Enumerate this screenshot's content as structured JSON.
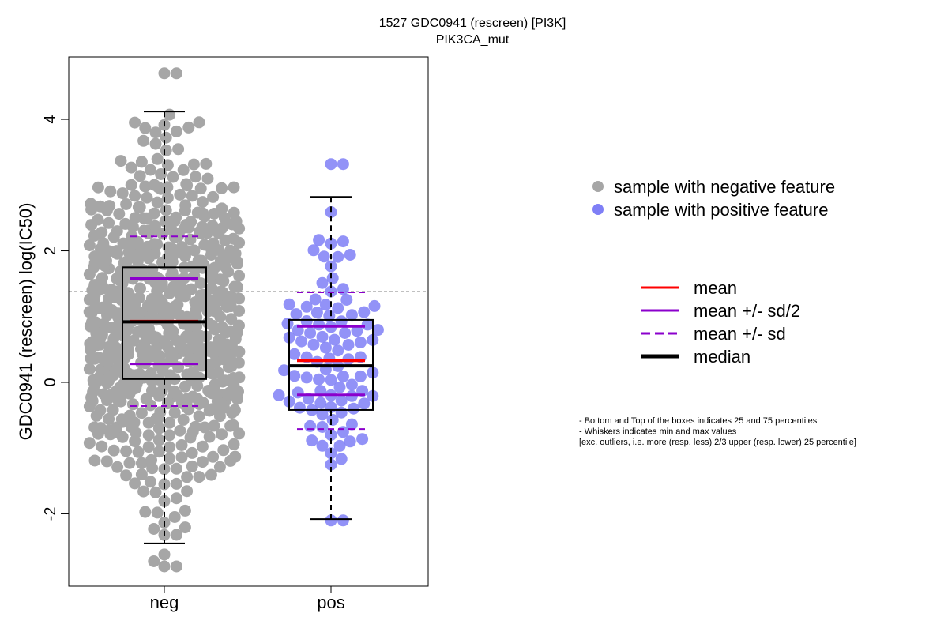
{
  "chart_data": {
    "type": "scatter",
    "title": "1527 GDC0941 (rescreen) [PI3K]",
    "subtitle": "PIK3CA_mut",
    "xlabel": "",
    "ylabel": "GDC0941 (rescreen) log(IC50)",
    "categories": [
      "neg",
      "pos"
    ],
    "ylim": [
      -3.1,
      4.95
    ],
    "yticks": [
      -2,
      0,
      2,
      4
    ],
    "reference_line": 1.38,
    "colors": {
      "neg_points": "#a6a6a6",
      "pos_points": "#7f7ff6",
      "pos_outline": "#3a3ae8",
      "mean": "#ff0000",
      "sd": "#8b00cc",
      "median": "#000000"
    },
    "groups": [
      {
        "name": "neg",
        "n": 700,
        "min": -2.45,
        "q1": 0.05,
        "median": 0.92,
        "q3": 1.75,
        "max": 4.12,
        "mean": 0.93,
        "sd_half_lo": 0.28,
        "sd_half_hi": 1.58,
        "sd_lo": -0.36,
        "sd_hi": 2.22,
        "cluster_mean": 0.9,
        "cluster_sd": 1.28,
        "y_lo": -2.8,
        "y_hi": 4.7
      },
      {
        "name": "pos",
        "n": 100,
        "min": -2.08,
        "q1": -0.42,
        "median": 0.25,
        "q3": 0.95,
        "max": 2.82,
        "mean": 0.33,
        "sd_half_lo": -0.19,
        "sd_half_hi": 0.85,
        "sd_lo": -0.71,
        "sd_hi": 1.37,
        "cluster_mean": 0.32,
        "cluster_sd": 0.98,
        "y_lo": -2.1,
        "y_hi": 3.32
      }
    ],
    "legend_points": [
      {
        "label": "sample with negative feature",
        "color": "#a6a6a6"
      },
      {
        "label": "sample with positive feature",
        "color": "#7f7ff6"
      }
    ],
    "legend_lines": [
      {
        "label": "mean",
        "color": "#ff0000",
        "style": "solid"
      },
      {
        "label": "mean +/- sd/2",
        "color": "#8b00cc",
        "style": "solid"
      },
      {
        "label": "mean +/- sd",
        "color": "#8b00cc",
        "style": "dashed"
      },
      {
        "label": "median",
        "color": "#000000",
        "style": "thick"
      }
    ],
    "notes": [
      "- Bottom and Top of the boxes indicates 25 and 75 percentiles",
      "- Whiskers indicates min and max values",
      "[exc. outliers, i.e. more (resp. less) 2/3 upper (resp. lower) 25 percentile]"
    ]
  }
}
